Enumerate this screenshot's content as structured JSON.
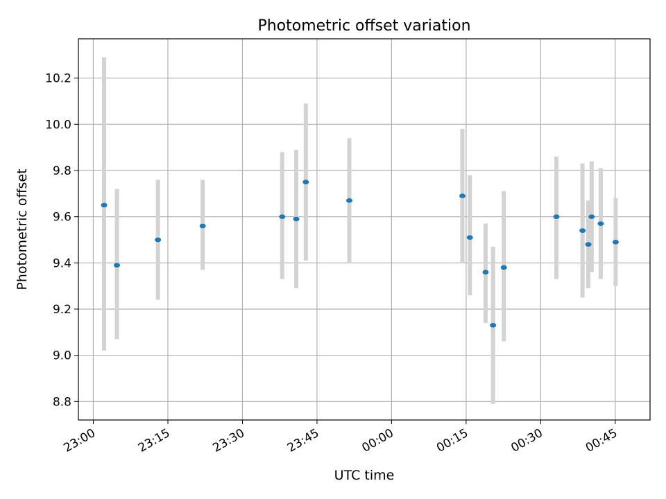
{
  "chart_data": {
    "type": "scatter",
    "title": "Photometric offset variation",
    "xlabel": "UTC time",
    "ylabel": "Photometric offset",
    "grid": true,
    "colors": {
      "points": "#1f77b4",
      "errorbars": "#d3d3d3"
    },
    "xlim": [
      "22:57",
      "00:52"
    ],
    "ylim": [
      8.72,
      10.37
    ],
    "x_ticks": [
      "23:00",
      "23:15",
      "23:30",
      "23:45",
      "00:00",
      "00:15",
      "00:30",
      "00:45"
    ],
    "y_ticks": [
      "8.8",
      "9.0",
      "9.2",
      "9.4",
      "9.6",
      "9.8",
      "10.0",
      "10.2"
    ],
    "points": [
      {
        "x": "23:02:10",
        "y": 9.65,
        "ylow": 9.02,
        "yhigh": 10.29
      },
      {
        "x": "23:04:45",
        "y": 9.39,
        "ylow": 9.07,
        "yhigh": 9.72
      },
      {
        "x": "23:13:00",
        "y": 9.5,
        "ylow": 9.24,
        "yhigh": 9.76
      },
      {
        "x": "23:22:00",
        "y": 9.56,
        "ylow": 9.37,
        "yhigh": 9.76
      },
      {
        "x": "23:38:00",
        "y": 9.6,
        "ylow": 9.33,
        "yhigh": 9.88
      },
      {
        "x": "23:40:50",
        "y": 9.59,
        "ylow": 9.29,
        "yhigh": 9.89
      },
      {
        "x": "23:42:45",
        "y": 9.75,
        "ylow": 9.41,
        "yhigh": 10.09
      },
      {
        "x": "23:51:30",
        "y": 9.67,
        "ylow": 9.4,
        "yhigh": 9.94
      },
      {
        "x": "00:14:15",
        "y": 9.69,
        "ylow": 9.4,
        "yhigh": 9.98
      },
      {
        "x": "00:15:45",
        "y": 9.51,
        "ylow": 9.26,
        "yhigh": 9.78
      },
      {
        "x": "00:18:55",
        "y": 9.36,
        "ylow": 9.14,
        "yhigh": 9.57
      },
      {
        "x": "00:20:25",
        "y": 9.13,
        "ylow": 8.79,
        "yhigh": 9.47
      },
      {
        "x": "00:22:35",
        "y": 9.38,
        "ylow": 9.06,
        "yhigh": 9.71
      },
      {
        "x": "00:33:10",
        "y": 9.6,
        "ylow": 9.33,
        "yhigh": 9.86
      },
      {
        "x": "00:38:25",
        "y": 9.54,
        "ylow": 9.25,
        "yhigh": 9.83
      },
      {
        "x": "00:39:35",
        "y": 9.48,
        "ylow": 9.29,
        "yhigh": 9.67
      },
      {
        "x": "00:40:15",
        "y": 9.6,
        "ylow": 9.36,
        "yhigh": 9.84
      },
      {
        "x": "00:42:05",
        "y": 9.57,
        "ylow": 9.33,
        "yhigh": 9.81
      },
      {
        "x": "00:45:05",
        "y": 9.49,
        "ylow": 9.3,
        "yhigh": 9.68
      }
    ]
  }
}
